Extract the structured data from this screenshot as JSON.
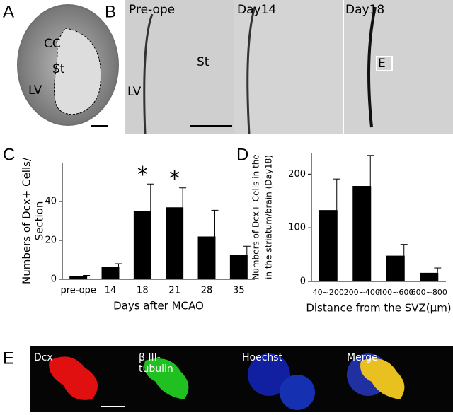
{
  "panels": {
    "a": {
      "label": "A",
      "regions": [
        "CC",
        "St",
        "LV"
      ]
    },
    "b": {
      "label": "B",
      "images": [
        "Pre-ope",
        "Day14",
        "Day18"
      ],
      "regions": [
        "St",
        "LV"
      ],
      "box": "E"
    },
    "e": {
      "label": "E",
      "images": [
        "Dcx",
        "β III-",
        "tubulin",
        "Hoechst",
        "Merge"
      ]
    }
  },
  "chart_data": [
    {
      "type": "bar",
      "panel": "C",
      "ylabel": [
        "Numbers of Dcx+ Cells/",
        "Section"
      ],
      "xlabel": "Days after MCAO",
      "categories": [
        "pre-ope",
        "14",
        "18",
        "21",
        "28",
        "35"
      ],
      "values": [
        1.5,
        6.5,
        35,
        37,
        22,
        12.5
      ],
      "errors": [
        0.5,
        1.5,
        14,
        10,
        13.5,
        4.5
      ],
      "significance": [
        null,
        null,
        "*",
        "*",
        null,
        null
      ],
      "color": "#000000",
      "ylim": [
        0,
        60
      ],
      "yticks": [
        0,
        20,
        40
      ]
    },
    {
      "type": "bar",
      "panel": "D",
      "ylabel": [
        "Numbers of Dcx+ Cells in the",
        "in the striatum/brain (Day18)"
      ],
      "xlabel": "Distance from the SVZ(μm)",
      "categories": [
        "40~200",
        "200~400",
        "400~600",
        "600~800"
      ],
      "values": [
        133,
        178,
        48,
        16
      ],
      "errors": [
        58,
        57,
        21,
        9
      ],
      "color": "#000000",
      "ylim": [
        0,
        240
      ],
      "yticks": [
        0,
        100,
        200
      ]
    }
  ]
}
